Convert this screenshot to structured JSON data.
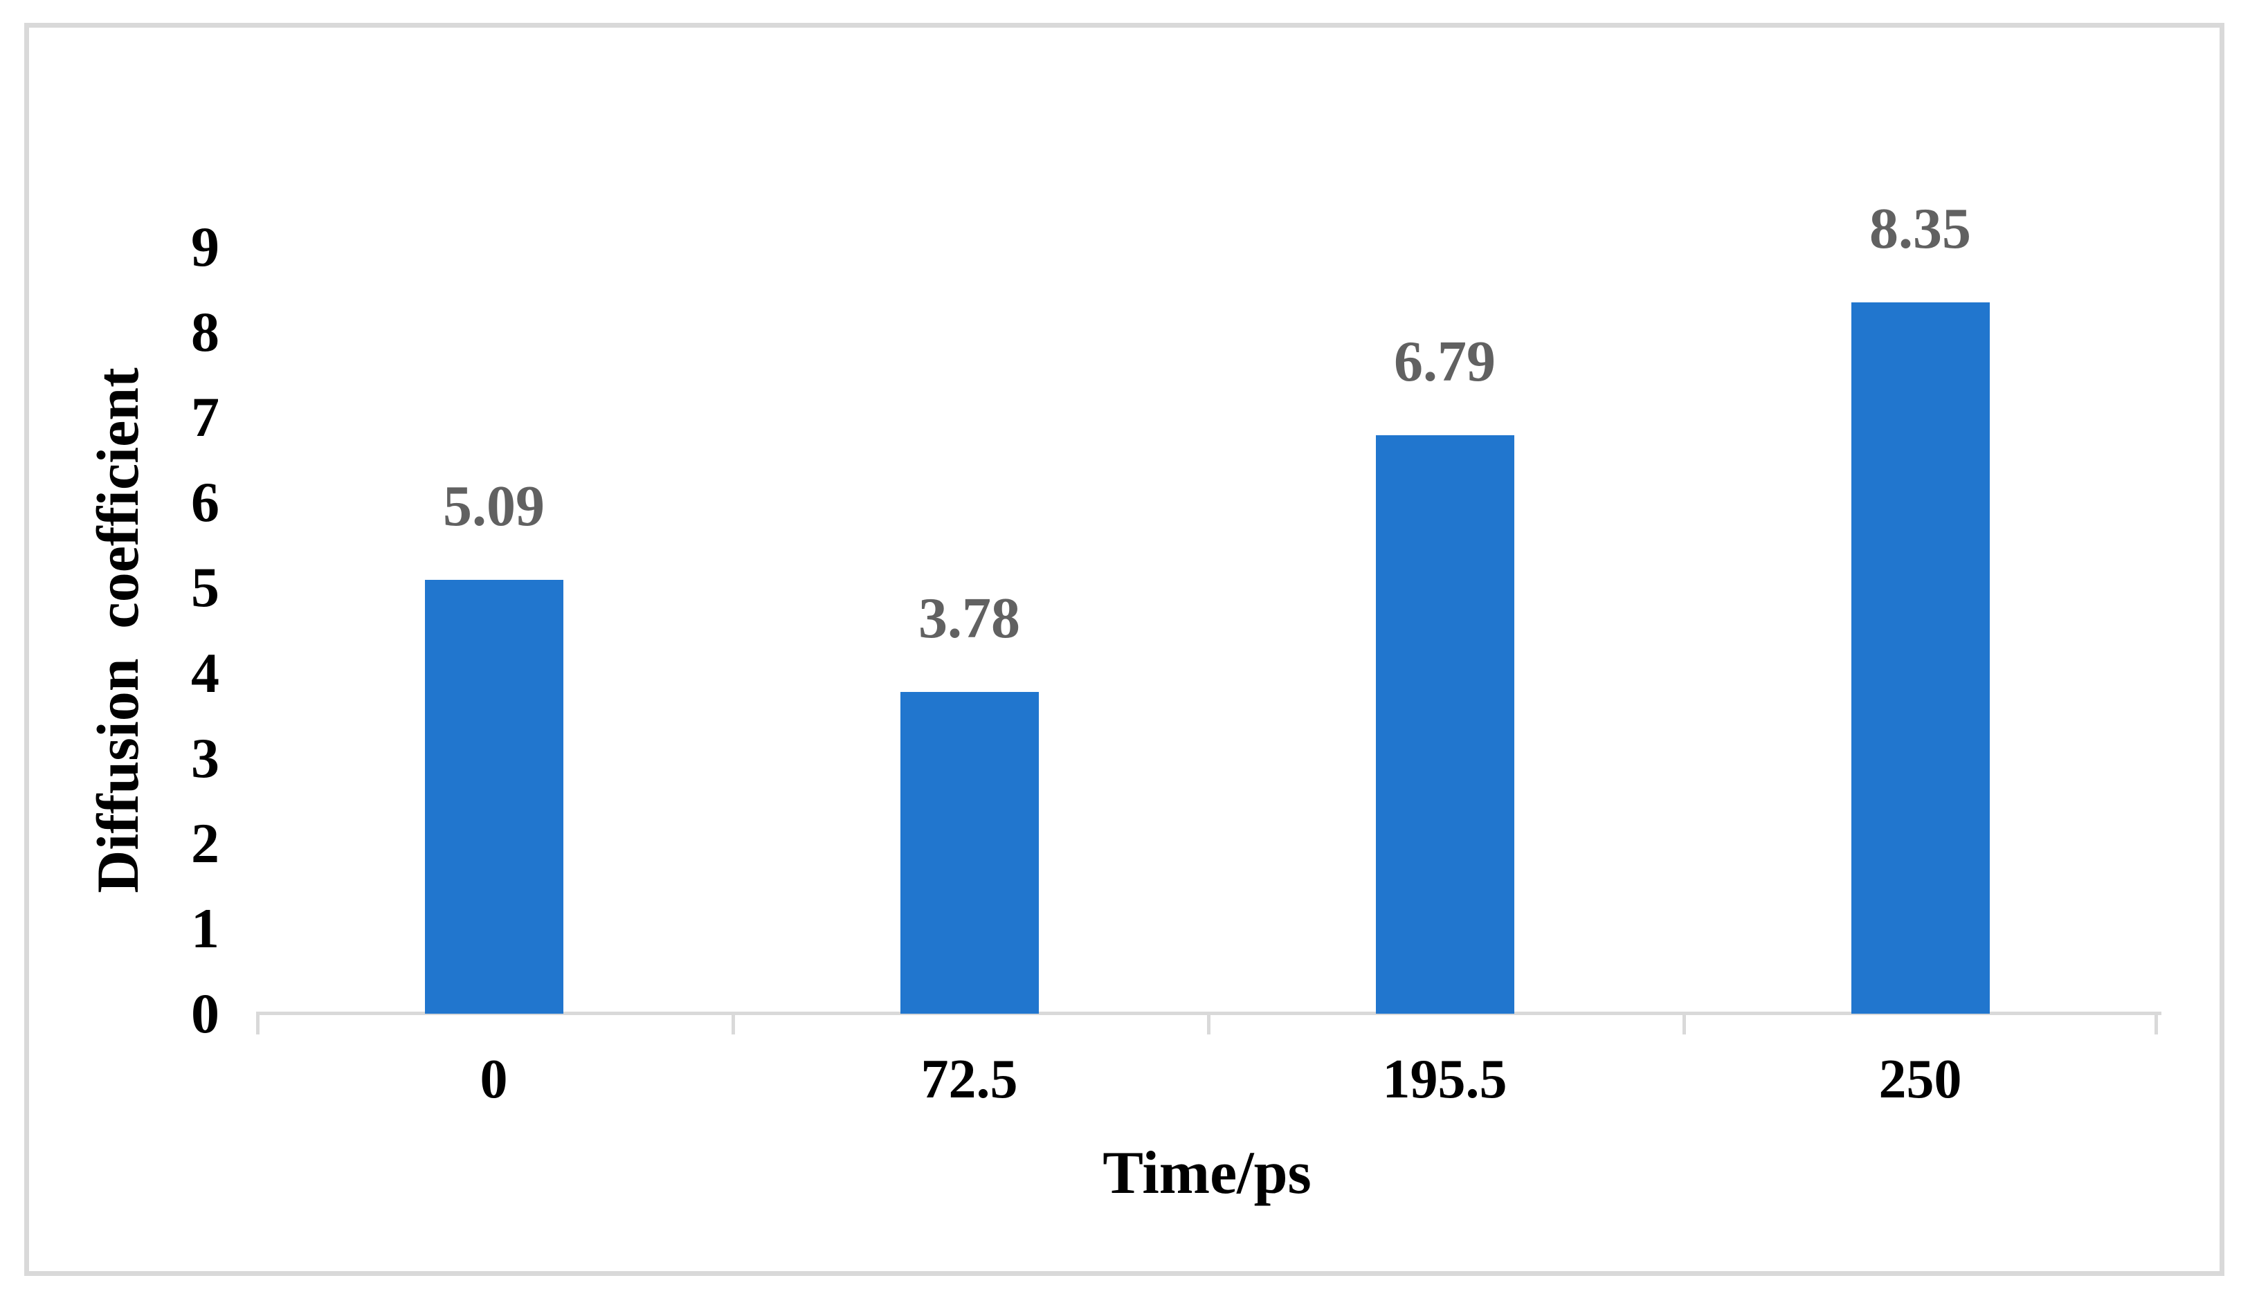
{
  "figure": {
    "background_color": "#FFFFFF",
    "border_color": "#D9D9D9"
  },
  "chart_data": {
    "type": "bar",
    "title": "",
    "categories": [
      "0",
      "72.5",
      "195.5",
      "250"
    ],
    "values": [
      5.09,
      3.78,
      6.79,
      8.35
    ],
    "data_labels": [
      "5.09",
      "3.78",
      "6.79",
      "8.35"
    ],
    "xlabel": "Time/ps",
    "ylabel": "Diffusion  coefficient",
    "ylim": [
      0,
      9
    ],
    "yticks": [
      0,
      1,
      2,
      3,
      4,
      5,
      6,
      7,
      8,
      9
    ],
    "grid": false,
    "legend_position": "none",
    "bar_color": "#2176CE",
    "data_label_color": "#616161",
    "axis_line_color": "#D9D9D9",
    "tick_label_color": "#000000"
  }
}
